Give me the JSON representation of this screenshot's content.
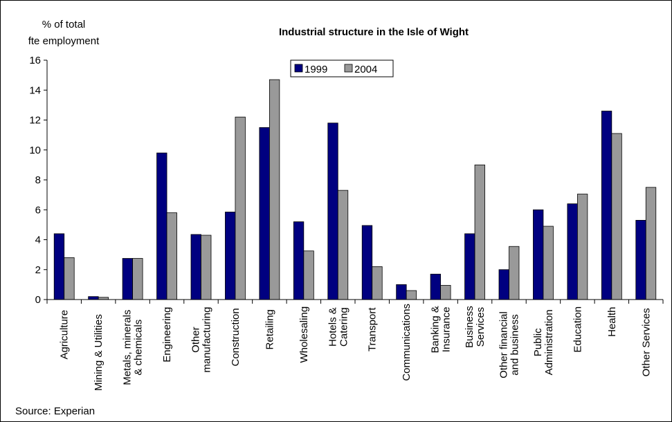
{
  "chart_data": {
    "type": "bar",
    "title": "Industrial structure in the Isle of Wight",
    "y_label": "% of total\nfte employment",
    "source": "Source: Experian",
    "categories": [
      "Agriculture",
      "Mining & Utilities",
      "Metals, minerals\n& chemicals",
      "Engineering",
      "Other\nmanufacturing",
      "Construction",
      "Retailing",
      "Wholesaling",
      "Hotels &\nCatering",
      "Transport",
      "Communications",
      "Banking &\nInsurance",
      "Business\nServices",
      "Other financial\nand business",
      "Public\nAdministration",
      "Education",
      "Health",
      "Other Services"
    ],
    "series": [
      {
        "name": "1999",
        "color": "#000080",
        "values": [
          4.4,
          0.2,
          2.75,
          9.8,
          4.35,
          5.85,
          11.5,
          5.2,
          11.8,
          4.95,
          1.0,
          1.7,
          4.4,
          2.0,
          6.0,
          6.4,
          12.6,
          5.3
        ]
      },
      {
        "name": "2004",
        "color": "#999999",
        "values": [
          2.8,
          0.15,
          2.75,
          5.8,
          4.3,
          12.2,
          14.7,
          3.25,
          7.3,
          2.2,
          0.6,
          0.95,
          9.0,
          3.55,
          4.9,
          7.05,
          11.1,
          7.5
        ]
      }
    ],
    "ylim": [
      0,
      16
    ],
    "yticks": [
      0,
      2,
      4,
      6,
      8,
      10,
      12,
      14,
      16
    ],
    "grid": false,
    "legend": "top"
  }
}
